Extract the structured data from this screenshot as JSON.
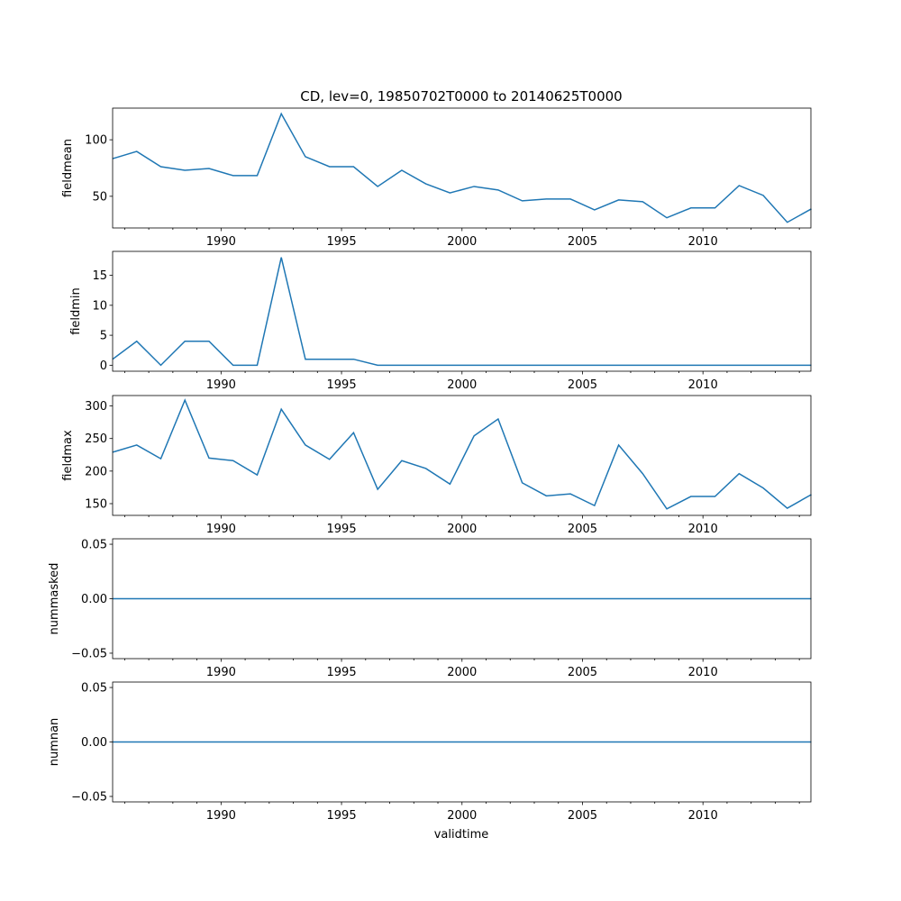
{
  "chart_data": {
    "type": "line",
    "title": "CD, lev=0, 19850702T0000 to 20140625T0000",
    "xlabel": "validtime",
    "x_tick_labels": [
      "1990",
      "1995",
      "2000",
      "2005",
      "2010"
    ],
    "x": [
      1985,
      1986,
      1987,
      1988,
      1989,
      1990,
      1991,
      1992,
      1993,
      1994,
      1995,
      1996,
      1997,
      1998,
      1999,
      2000,
      2001,
      2002,
      2003,
      2004,
      2005,
      2006,
      2007,
      2008,
      2009,
      2010,
      2011,
      2012,
      2013,
      2014
    ],
    "xlim": [
      1985.5,
      2014.48
    ],
    "color": "#1f77b4",
    "panels": [
      {
        "ylabel": "fieldmean",
        "ylim": [
          22,
          128
        ],
        "yticks": [
          50,
          100
        ],
        "ytick_labels": [
          "50",
          "100"
        ],
        "values": [
          83.3,
          89.7,
          76.2,
          73,
          74.6,
          68.3,
          68.3,
          123,
          85,
          76.2,
          76.2,
          58.7,
          73,
          61,
          53,
          58.7,
          55.6,
          46,
          47.6,
          47.6,
          38,
          46.8,
          45.2,
          31,
          39.7,
          39.7,
          59.5,
          50.8,
          27,
          38.9
        ]
      },
      {
        "ylabel": "fieldmin",
        "ylim": [
          -1,
          19
        ],
        "yticks": [
          0,
          5,
          10,
          15
        ],
        "ytick_labels": [
          "0",
          "5",
          "10",
          "15"
        ],
        "values": [
          1,
          4,
          0,
          4,
          4,
          0,
          0,
          18,
          1,
          1,
          1,
          0,
          0,
          0,
          0,
          0,
          0,
          0,
          0,
          0,
          0,
          0,
          0,
          0,
          0,
          0,
          0,
          0,
          0,
          0
        ]
      },
      {
        "ylabel": "fieldmax",
        "ylim": [
          132,
          316
        ],
        "yticks": [
          150,
          200,
          250,
          300
        ],
        "ytick_labels": [
          "150",
          "200",
          "250",
          "300"
        ],
        "values": [
          229,
          240,
          219,
          309,
          220,
          216,
          194,
          295,
          240,
          218,
          259,
          172,
          216,
          204,
          180,
          254,
          280,
          182,
          162,
          165,
          147,
          240,
          196,
          142,
          161,
          161,
          196,
          174,
          143,
          164
        ]
      },
      {
        "ylabel": "nummasked",
        "ylim": [
          -0.055,
          0.055
        ],
        "yticks": [
          -0.05,
          0,
          0.05
        ],
        "ytick_labels": [
          "−0.05",
          "0.00",
          "0.05"
        ],
        "values": [
          0,
          0,
          0,
          0,
          0,
          0,
          0,
          0,
          0,
          0,
          0,
          0,
          0,
          0,
          0,
          0,
          0,
          0,
          0,
          0,
          0,
          0,
          0,
          0,
          0,
          0,
          0,
          0,
          0,
          0
        ]
      },
      {
        "ylabel": "numnan",
        "ylim": [
          -0.055,
          0.055
        ],
        "yticks": [
          -0.05,
          0,
          0.05
        ],
        "ytick_labels": [
          "−0.05",
          "0.00",
          "0.05"
        ],
        "values": [
          0,
          0,
          0,
          0,
          0,
          0,
          0,
          0,
          0,
          0,
          0,
          0,
          0,
          0,
          0,
          0,
          0,
          0,
          0,
          0,
          0,
          0,
          0,
          0,
          0,
          0,
          0,
          0,
          0,
          0
        ]
      }
    ]
  }
}
